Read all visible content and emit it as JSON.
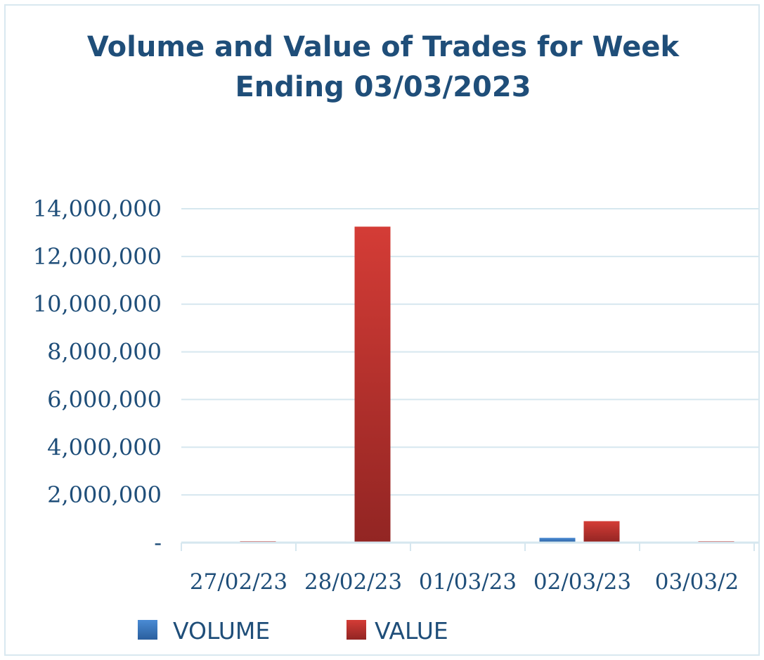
{
  "chart_data": {
    "type": "bar",
    "title": "Volume and Value of Trades for Week",
    "title_line2": "Ending 03/03/2023",
    "categories": [
      "27/02/23",
      "28/02/23",
      "01/03/23",
      "02/03/23",
      "03/03/2"
    ],
    "series": [
      {
        "name": "VOLUME",
        "color": "#3f7fc8",
        "values": [
          25000,
          45000,
          20000,
          200000,
          20000
        ]
      },
      {
        "name": "VALUE",
        "color": "#c23732",
        "values": [
          60000,
          13250000,
          0,
          900000,
          60000
        ]
      }
    ],
    "ylim": [
      0,
      14000000
    ],
    "yticks": [
      0,
      2000000,
      4000000,
      6000000,
      8000000,
      10000000,
      12000000,
      14000000
    ],
    "ytick_labels": [
      "-",
      "2,000,000",
      "4,000,000",
      "6,000,000",
      "8,000,000",
      "10,000,000",
      "12,000,000",
      "14,000,000"
    ],
    "xlabel": "",
    "ylabel": "",
    "grid": true,
    "legend_position": "bottom"
  }
}
